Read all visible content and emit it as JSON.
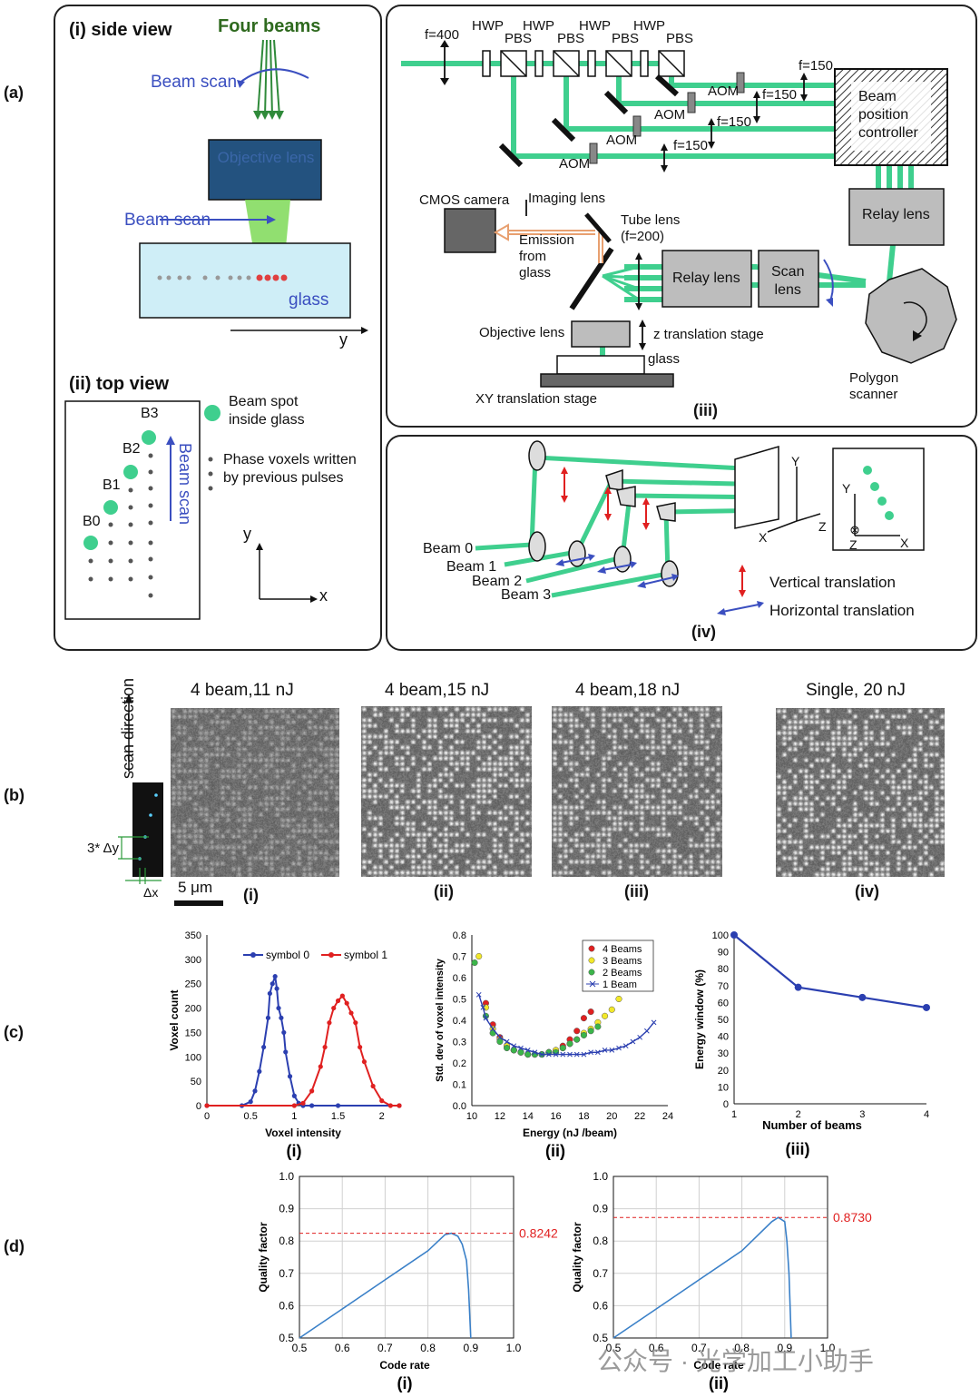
{
  "panel_labels": {
    "a": "(a)",
    "b": "(b)",
    "c": "(c)",
    "d": "(d)"
  },
  "a_left": {
    "side_title": "(i) side view",
    "four_beams": "Four beams",
    "beam_scan_top": "Beam scan",
    "objective": "Objective lens",
    "beam_scan_mid": "Beam scan",
    "glass": "glass",
    "y_axis": "y",
    "top_title": "(ii) top view",
    "b3": "B3",
    "b2": "B2",
    "b1": "B1",
    "b0": "B0",
    "beam_scan_vert": "Beam scan",
    "legend_spot_1": "Beam spot",
    "legend_spot_2": "inside glass",
    "legend_voxel_1": "Phase voxels written",
    "legend_voxel_2": "by previous pulses",
    "axis_y": "y",
    "axis_x": "x"
  },
  "a_iii": {
    "f400": "f=400",
    "hwp": [
      "HWP",
      "HWP",
      "HWP",
      "HWP"
    ],
    "pbs": [
      "PBS",
      "PBS",
      "PBS",
      "PBS"
    ],
    "aom": [
      "AOM",
      "AOM",
      "AOM",
      "AOM"
    ],
    "f150": [
      "f=150",
      "f=150",
      "f=150",
      "f=150"
    ],
    "controller": [
      "Beam",
      "position",
      "controller"
    ],
    "cmos": "CMOS camera",
    "imaging_lens": "Imaging lens",
    "tube_lens": [
      "Tube lens",
      "(f=200)"
    ],
    "emission": [
      "Emission",
      "from",
      "glass"
    ],
    "relay1": "Relay lens",
    "relay2": "Relay lens",
    "scan_lens": [
      "Scan",
      "lens"
    ],
    "objective": "Objective lens",
    "z_stage": "z translation stage",
    "glass": "glass",
    "xy_stage": "XY translation stage",
    "polygon": [
      "Polygon",
      "scanner"
    ],
    "label": "(iii)"
  },
  "a_iv": {
    "beams": [
      "Beam 0",
      "Beam 1",
      "Beam 2",
      "Beam 3"
    ],
    "axes": {
      "y": "Y",
      "z": "Z",
      "x": "X"
    },
    "vertical": "Vertical translation",
    "horizontal": "Horizontal translation",
    "label": "(iv)"
  },
  "b": {
    "scan_direction": "scan direction",
    "dy": "3* Δy",
    "dx": "Δx",
    "scale": "5 μm",
    "titles": [
      "4 beam,11 nJ",
      "4 beam,15 nJ",
      "4 beam,18 nJ",
      "Single, 20 nJ"
    ],
    "labels": [
      "(i)",
      "(ii)",
      "(iii)",
      "(iv)"
    ]
  },
  "c": {
    "c1": {
      "ylabel": "Voxel count",
      "xlabel": "Voxel intensity",
      "label": "(i)",
      "legend": [
        "symbol 0",
        "symbol 1"
      ],
      "yticks": [
        "0",
        "50",
        "100",
        "150",
        "200",
        "250",
        "300",
        "350"
      ],
      "xticks": [
        "0",
        "0.5",
        "1",
        "1.5",
        "2"
      ]
    },
    "c2": {
      "ylabel": "Std. dev of voxel intensity",
      "xlabel": "Energy (nJ /beam)",
      "label": "(ii)",
      "legend": [
        "4 Beams",
        "3 Beams",
        "2 Beams",
        "1 Beam"
      ],
      "yticks": [
        "0.0",
        "0.1",
        "0.2",
        "0.3",
        "0.4",
        "0.5",
        "0.6",
        "0.7",
        "0.8"
      ],
      "xticks": [
        "10",
        "12",
        "14",
        "16",
        "18",
        "20",
        "22",
        "24"
      ]
    },
    "c3": {
      "ylabel": "Energy window (%)",
      "xlabel": "Number of beams",
      "label": "(iii)",
      "yticks": [
        "0",
        "10",
        "20",
        "30",
        "40",
        "50",
        "60",
        "70",
        "80",
        "90",
        "100"
      ],
      "xticks": [
        "1",
        "2",
        "3",
        "4"
      ]
    }
  },
  "d": {
    "d1": {
      "ylabel": "Quality factor",
      "xlabel": "Code rate",
      "label": "(i)",
      "peak_label": "0.8242"
    },
    "d2": {
      "ylabel": "Quality factor",
      "xlabel": "Code rate",
      "label": "(ii)",
      "peak_label": "0.8730"
    },
    "yticks": [
      "0.5",
      "0.6",
      "0.7",
      "0.8",
      "0.9",
      "1.0"
    ],
    "xticks": [
      "0.5",
      "0.6",
      "0.7",
      "0.8",
      "0.9",
      "1.0"
    ]
  },
  "watermark": "公众号 · 光学加工小助手",
  "colors": {
    "beam_green": "#3fcf8e",
    "blue": "#2b3fb0",
    "red": "#e02020",
    "dark_blue_box": "#1f4d7a"
  },
  "chart_data": [
    {
      "type": "line",
      "id": "c-i",
      "xlim": [
        0,
        2.2
      ],
      "ylim": [
        0,
        350
      ],
      "series": [
        {
          "name": "symbol 0",
          "x": [
            0,
            0.4,
            0.5,
            0.55,
            0.6,
            0.65,
            0.7,
            0.72,
            0.75,
            0.78,
            0.8,
            0.82,
            0.85,
            0.88,
            0.9,
            0.95,
            1.0,
            1.05,
            1.1,
            1.2,
            1.5,
            2.2
          ],
          "values": [
            0,
            0,
            8,
            30,
            70,
            120,
            180,
            230,
            250,
            265,
            240,
            200,
            180,
            150,
            110,
            60,
            20,
            5,
            0,
            0,
            0,
            0
          ]
        },
        {
          "name": "symbol 1",
          "x": [
            0,
            1.0,
            1.1,
            1.2,
            1.3,
            1.35,
            1.4,
            1.45,
            1.5,
            1.55,
            1.6,
            1.65,
            1.7,
            1.75,
            1.8,
            1.9,
            2.0,
            2.1,
            2.2
          ],
          "values": [
            0,
            0,
            5,
            30,
            80,
            120,
            170,
            200,
            215,
            225,
            210,
            190,
            170,
            120,
            90,
            40,
            10,
            0,
            0
          ]
        }
      ]
    },
    {
      "type": "scatter",
      "id": "c-ii",
      "xlim": [
        10,
        24
      ],
      "ylim": [
        0,
        0.8
      ],
      "series": [
        {
          "name": "4 Beams",
          "x": [
            11,
            11.5,
            12,
            12.5,
            13,
            13.5,
            14,
            14.5,
            15,
            15.5,
            16,
            16.5,
            17,
            17.5,
            18,
            18.5
          ],
          "values": [
            0.48,
            0.38,
            0.32,
            0.28,
            0.26,
            0.25,
            0.24,
            0.24,
            0.24,
            0.25,
            0.26,
            0.28,
            0.31,
            0.35,
            0.41,
            0.44
          ]
        },
        {
          "name": "3 Beams",
          "x": [
            10.5,
            11,
            11.5,
            12,
            12.5,
            13,
            13.5,
            14,
            14.5,
            15,
            15.5,
            16,
            16.5,
            17,
            17.5,
            18,
            18.5,
            19,
            19.5,
            20,
            20.5
          ],
          "values": [
            0.7,
            0.46,
            0.36,
            0.31,
            0.28,
            0.26,
            0.25,
            0.24,
            0.24,
            0.24,
            0.25,
            0.26,
            0.27,
            0.29,
            0.31,
            0.34,
            0.36,
            0.39,
            0.42,
            0.45,
            0.5
          ]
        },
        {
          "name": "2 Beams",
          "x": [
            10.2,
            11,
            11.5,
            12,
            12.5,
            13,
            13.5,
            14,
            14.5,
            15,
            15.5,
            16,
            16.5,
            17,
            17.5,
            18,
            18.5,
            19
          ],
          "values": [
            0.67,
            0.42,
            0.34,
            0.3,
            0.27,
            0.26,
            0.25,
            0.24,
            0.24,
            0.24,
            0.25,
            0.25,
            0.27,
            0.29,
            0.31,
            0.33,
            0.35,
            0.37
          ]
        },
        {
          "name": "1 Beam",
          "x": [
            10.5,
            10.8,
            11,
            11.5,
            12,
            12.5,
            13,
            13.5,
            14,
            14.5,
            15,
            15.5,
            16,
            16.5,
            17,
            17.5,
            18,
            18.5,
            19,
            19.5,
            20,
            20.5,
            21,
            21.5,
            22,
            22.5,
            23
          ],
          "values": [
            0.52,
            0.46,
            0.41,
            0.36,
            0.32,
            0.3,
            0.28,
            0.27,
            0.26,
            0.25,
            0.24,
            0.24,
            0.24,
            0.24,
            0.24,
            0.24,
            0.24,
            0.25,
            0.25,
            0.26,
            0.26,
            0.27,
            0.28,
            0.3,
            0.32,
            0.35,
            0.39
          ]
        }
      ]
    },
    {
      "type": "line",
      "id": "c-iii",
      "xlim": [
        1,
        4
      ],
      "ylim": [
        0,
        100
      ],
      "x": [
        1,
        2,
        3,
        4
      ],
      "values": [
        100,
        69,
        63,
        57
      ]
    },
    {
      "type": "line",
      "id": "d-i",
      "xlim": [
        0.5,
        1.0
      ],
      "ylim": [
        0.5,
        1.0
      ],
      "x": [
        0.5,
        0.6,
        0.7,
        0.8,
        0.84,
        0.855,
        0.87,
        0.88,
        0.89,
        0.895,
        0.9
      ],
      "values": [
        0.5,
        0.59,
        0.68,
        0.77,
        0.82,
        0.8242,
        0.815,
        0.79,
        0.74,
        0.65,
        0.5
      ],
      "annotation": {
        "y": 0.8242,
        "label": "0.8242"
      }
    },
    {
      "type": "line",
      "id": "d-ii",
      "xlim": [
        0.5,
        1.0
      ],
      "ylim": [
        0.5,
        1.0
      ],
      "x": [
        0.5,
        0.6,
        0.7,
        0.8,
        0.87,
        0.885,
        0.9,
        0.905,
        0.91,
        0.915
      ],
      "values": [
        0.5,
        0.59,
        0.68,
        0.77,
        0.86,
        0.873,
        0.86,
        0.8,
        0.7,
        0.5
      ],
      "annotation": {
        "y": 0.873,
        "label": "0.8730"
      }
    }
  ]
}
